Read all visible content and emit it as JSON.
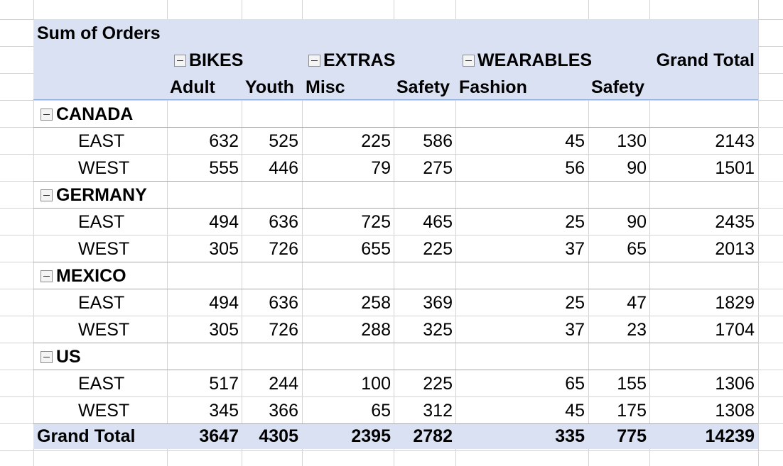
{
  "pivot": {
    "values_label": "Sum of Orders",
    "grand_total_label": "Grand Total",
    "column_groups": [
      {
        "label": "BIKES",
        "subcolumns": [
          "Adult",
          "Youth"
        ]
      },
      {
        "label": "EXTRAS",
        "subcolumns": [
          "Misc",
          "Safety"
        ]
      },
      {
        "label": "WEARABLES",
        "subcolumns": [
          "Fashion",
          "Safety"
        ]
      }
    ],
    "countries": [
      {
        "name": "CANADA",
        "regions": [
          {
            "name": "EAST",
            "values": [
              "632",
              "525",
              "225",
              "586",
              "45",
              "130"
            ],
            "total": "2143"
          },
          {
            "name": "WEST",
            "values": [
              "555",
              "446",
              "79",
              "275",
              "56",
              "90"
            ],
            "total": "1501"
          }
        ]
      },
      {
        "name": "GERMANY",
        "regions": [
          {
            "name": "EAST",
            "values": [
              "494",
              "636",
              "725",
              "465",
              "25",
              "90"
            ],
            "total": "2435"
          },
          {
            "name": "WEST",
            "values": [
              "305",
              "726",
              "655",
              "225",
              "37",
              "65"
            ],
            "total": "2013"
          }
        ]
      },
      {
        "name": "MEXICO",
        "regions": [
          {
            "name": "EAST",
            "values": [
              "494",
              "636",
              "258",
              "369",
              "25",
              "47"
            ],
            "total": "1829"
          },
          {
            "name": "WEST",
            "values": [
              "305",
              "726",
              "288",
              "325",
              "37",
              "23"
            ],
            "total": "1704"
          }
        ]
      },
      {
        "name": "US",
        "regions": [
          {
            "name": "EAST",
            "values": [
              "517",
              "244",
              "100",
              "225",
              "65",
              "155"
            ],
            "total": "1306"
          },
          {
            "name": "WEST",
            "values": [
              "345",
              "366",
              "65",
              "312",
              "45",
              "175"
            ],
            "total": "1308"
          }
        ]
      }
    ],
    "grand_total_row": {
      "values": [
        "3647",
        "4305",
        "2395",
        "2782",
        "335",
        "775"
      ],
      "total": "14239"
    }
  },
  "colors": {
    "header_band": "#d9e1f2",
    "separator": "#8ea9db",
    "gridline": "#d4d4d4"
  }
}
